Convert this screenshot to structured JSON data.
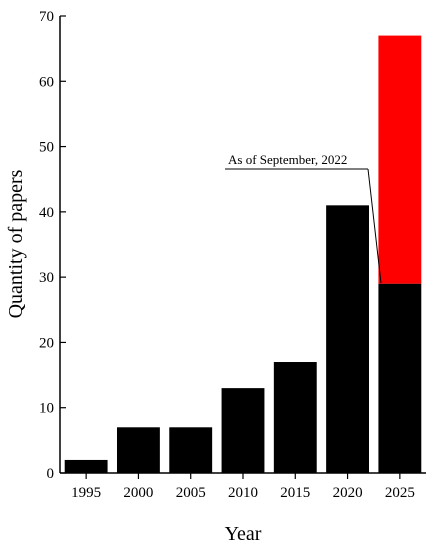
{
  "chart_data": {
    "type": "bar",
    "xlabel": "Year",
    "ylabel": "Quantity of papers",
    "ylim": [
      0,
      70
    ],
    "yticks": [
      "0",
      "10",
      "20",
      "30",
      "40",
      "50",
      "60",
      "70"
    ],
    "categories": [
      "1995",
      "2000",
      "2005",
      "2010",
      "2015",
      "2020",
      "2025"
    ],
    "series": [
      {
        "values": [
          2,
          7,
          7,
          13,
          17,
          41,
          29
        ],
        "color": "#000000"
      },
      {
        "values": [
          0,
          0,
          0,
          0,
          0,
          0,
          38
        ],
        "color": "#ff0000"
      }
    ],
    "stacked": true,
    "annotation": {
      "text": "As of September, 2022",
      "target_category": "2025",
      "target_value": 29
    },
    "grid": false,
    "legend": "none"
  }
}
